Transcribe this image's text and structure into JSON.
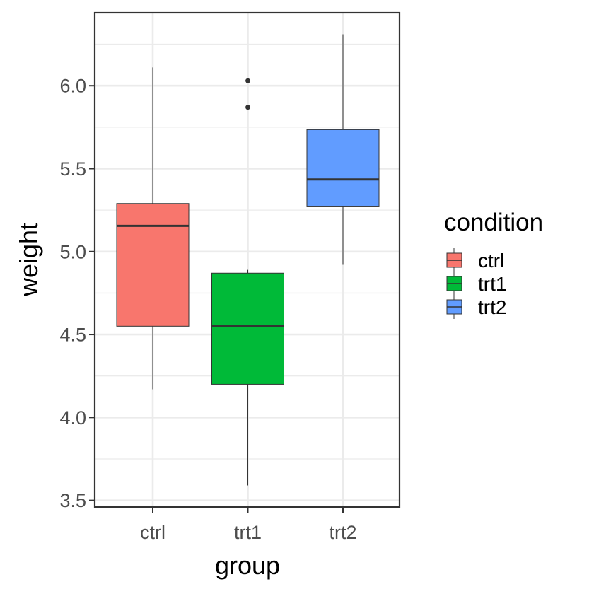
{
  "chart_data": {
    "type": "boxplot",
    "xlabel": "group",
    "ylabel": "weight",
    "categories": [
      "ctrl",
      "trt1",
      "trt2"
    ],
    "ylim": [
      3.46,
      6.44
    ],
    "yticks": [
      3.5,
      4.0,
      4.5,
      5.0,
      5.5,
      6.0
    ],
    "ytick_labels": [
      "3.5",
      "4.0",
      "4.5",
      "5.0",
      "5.5",
      "6.0"
    ],
    "grid": true,
    "legend": {
      "title": "condition",
      "position": "right",
      "items": [
        "ctrl",
        "trt1",
        "trt2"
      ]
    },
    "colors": {
      "ctrl": "#F8766D",
      "trt1": "#00BA38",
      "trt2": "#619CFF"
    },
    "boxes": [
      {
        "category": "ctrl",
        "min": 4.17,
        "q1": 4.55,
        "median": 5.155,
        "q3": 5.29,
        "max": 6.11,
        "outliers": []
      },
      {
        "category": "trt1",
        "min": 3.59,
        "q1": 4.2,
        "median": 4.55,
        "q3": 4.87,
        "max": 4.89,
        "outliers": [
          5.87,
          6.03
        ]
      },
      {
        "category": "trt2",
        "min": 4.92,
        "q1": 5.27,
        "median": 5.435,
        "q3": 5.735,
        "max": 6.31,
        "outliers": []
      }
    ]
  }
}
